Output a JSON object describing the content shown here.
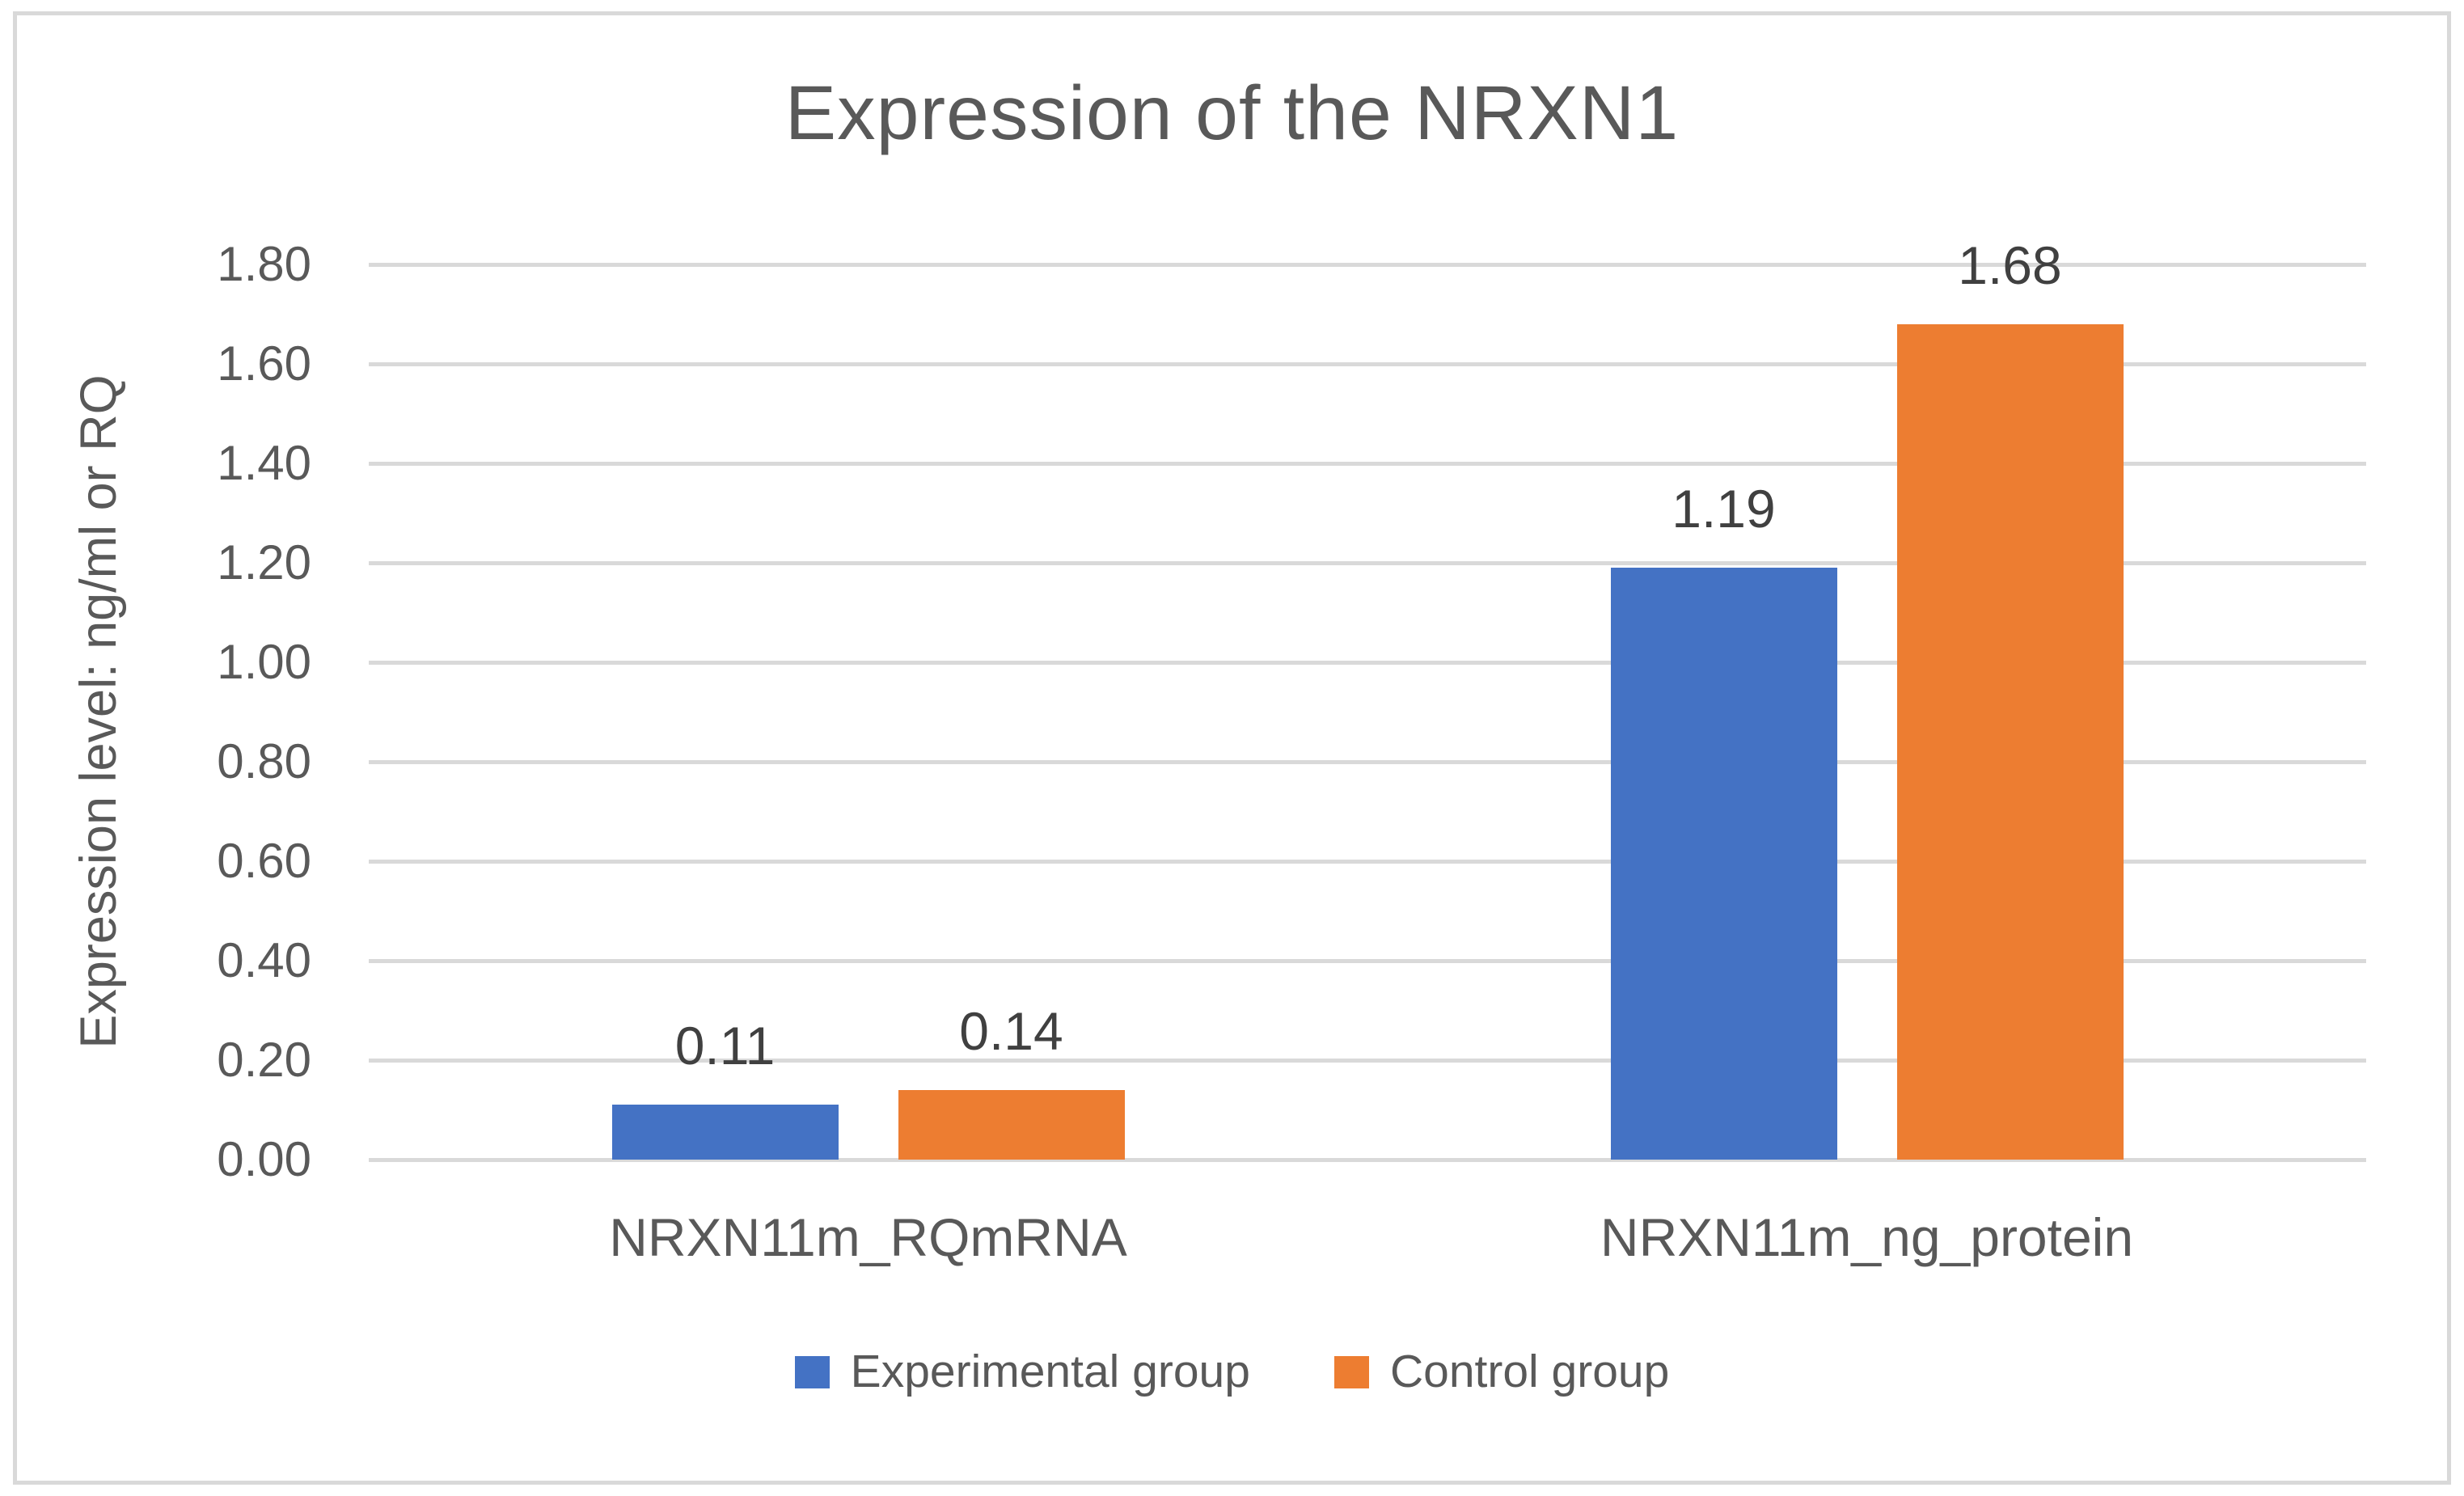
{
  "chart_data": {
    "type": "bar",
    "title": "Expression of the NRXN1",
    "ylabel": "Expression level: ng/ml or RQ",
    "xlabel": "",
    "categories": [
      "NRXN11m_RQmRNA",
      "NRXN11m_ng_protein"
    ],
    "series": [
      {
        "name": "Experimental group",
        "color": "#4472C4",
        "values": [
          0.11,
          1.19
        ],
        "data_labels": [
          "0.11",
          "1.19"
        ]
      },
      {
        "name": "Control group",
        "color": "#ED7D31",
        "values": [
          0.14,
          1.68
        ],
        "data_labels": [
          "0.14",
          "1.68"
        ]
      }
    ],
    "ylim": [
      0,
      1.8
    ],
    "ytick_step": 0.2,
    "ytick_labels": [
      "0.00",
      "0.20",
      "0.40",
      "0.60",
      "0.80",
      "1.00",
      "1.20",
      "1.40",
      "1.60",
      "1.80"
    ],
    "grid": true,
    "legend_position": "bottom",
    "colors": {
      "gridline": "#D9D9D9",
      "frame_border": "#D9D9D9",
      "axis_text": "#595959",
      "title_text": "#595959",
      "data_label_text": "#404040"
    }
  }
}
